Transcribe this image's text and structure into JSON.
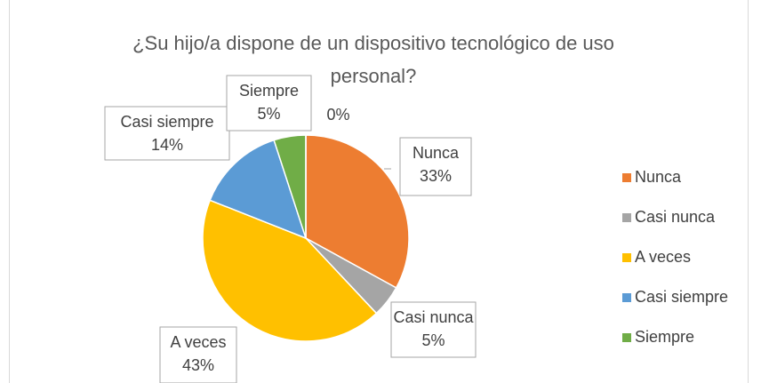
{
  "chart_data": {
    "type": "pie",
    "title": "¿Su hijo/a dispone de un dispositivo tecnológico de uso personal?",
    "categories": [
      "Nunca",
      "Casi nunca",
      "A veces",
      "Casi siempre",
      "Siempre",
      null
    ],
    "values": [
      33,
      5,
      43,
      14,
      5,
      0
    ],
    "value_labels": [
      "33%",
      "5%",
      "43%",
      "14%",
      "5%",
      "0%"
    ],
    "colors": [
      "#ed7d31",
      "#a5a5a5",
      "#ffc000",
      "#5b9bd5",
      "#70ad47",
      "#264478"
    ],
    "legend": "right"
  }
}
